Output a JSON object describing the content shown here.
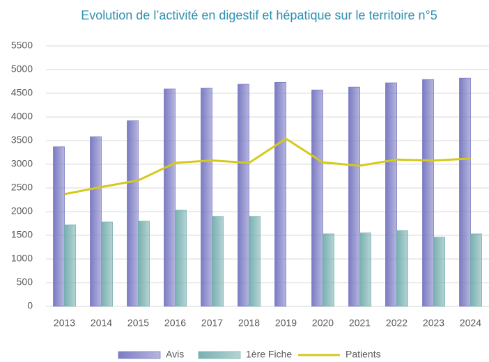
{
  "chart_data": {
    "type": "bar",
    "title": "Evolution de l’activité en digestif et hépatique sur le territoire n°5",
    "categories": [
      "2013",
      "2014",
      "2015",
      "2016",
      "2017",
      "2018",
      "2019",
      "2020",
      "2021",
      "2022",
      "2023",
      "2024"
    ],
    "series": [
      {
        "name": "Avis",
        "type": "bar",
        "color": "#7b7bc4",
        "values": [
          3370,
          3580,
          3920,
          4590,
          4610,
          4690,
          4730,
          4570,
          4630,
          4720,
          4790,
          4820
        ]
      },
      {
        "name": "1ère Fiche",
        "type": "bar",
        "color": "#78b0b0",
        "values": [
          1720,
          1780,
          1800,
          2030,
          1900,
          1900,
          null,
          1530,
          1550,
          1600,
          1460,
          1530
        ]
      },
      {
        "name": "Patients",
        "type": "line",
        "color": "#d6c91c",
        "values": [
          2370,
          2520,
          2660,
          3030,
          3080,
          3030,
          3540,
          3040,
          2970,
          3100,
          3080,
          3120
        ]
      }
    ],
    "ylim": [
      0,
      5500
    ],
    "yticks": [
      0,
      500,
      1000,
      1500,
      2000,
      2500,
      3000,
      3500,
      4000,
      4500,
      5000,
      5500
    ],
    "grid": true
  }
}
